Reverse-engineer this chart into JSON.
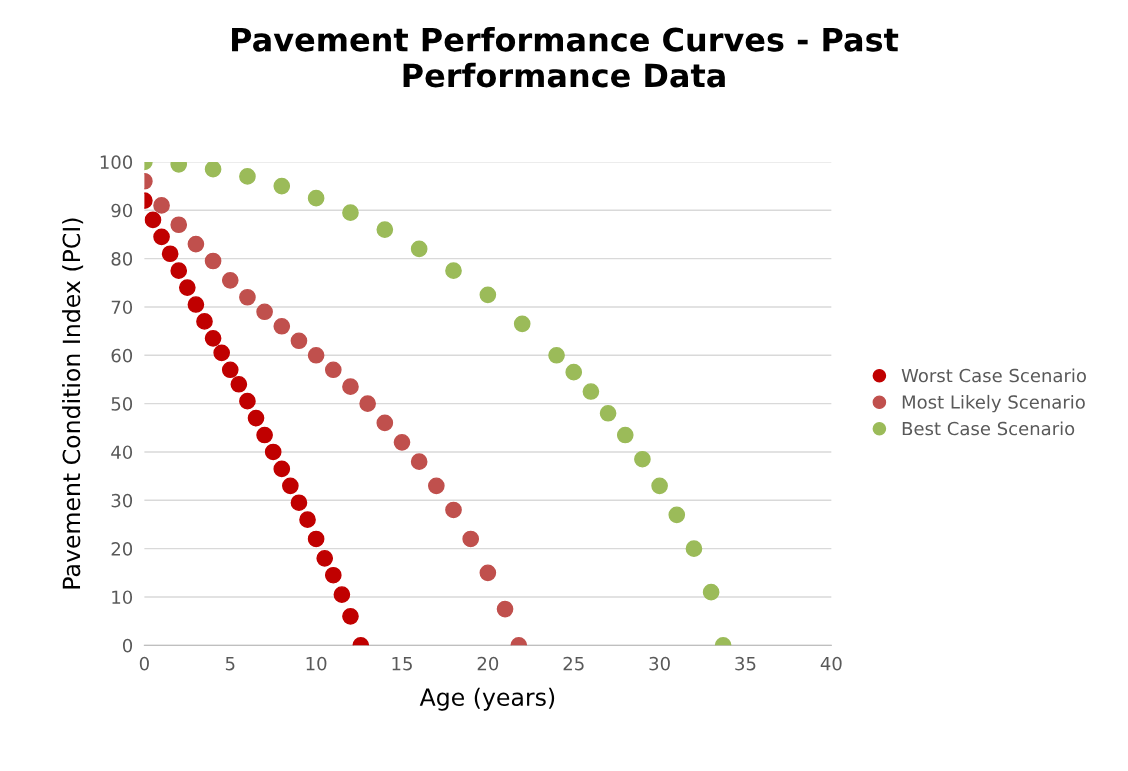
{
  "chart_data": {
    "type": "scatter",
    "title": "Pavement Performance Curves - Past\nPerformance Data",
    "xlabel": "Age (years)",
    "ylabel": "Pavement Condition Index (PCI)",
    "xlim": [
      0,
      40
    ],
    "xticks": [
      0,
      5,
      10,
      15,
      20,
      25,
      30,
      35,
      40
    ],
    "ylim": [
      0,
      100
    ],
    "yticks": [
      0,
      10,
      20,
      30,
      40,
      50,
      60,
      70,
      80,
      90,
      100
    ],
    "grid": "y",
    "legend": "right",
    "marker": "circle",
    "series": [
      {
        "name": "Worst Case Scenario",
        "color": "#c00000",
        "x": [
          0,
          0.5,
          1,
          1.5,
          2,
          2.5,
          3,
          3.5,
          4,
          4.5,
          5,
          5.5,
          6,
          6.5,
          7,
          7.5,
          8,
          8.5,
          9,
          9.5,
          10,
          10.5,
          11,
          11.5,
          12,
          12.6
        ],
        "values": [
          92,
          88,
          84.5,
          81,
          77.5,
          74,
          70.5,
          67,
          63.5,
          60.5,
          57,
          54,
          50.5,
          47,
          43.5,
          40,
          36.5,
          33,
          29.5,
          26,
          22,
          18,
          14.5,
          10.5,
          6,
          0
        ]
      },
      {
        "name": "Most Likely Scenario",
        "color": "#c0504d",
        "x": [
          0,
          1,
          2,
          3,
          4,
          5,
          6,
          7,
          8,
          9,
          10,
          11,
          12,
          13,
          14,
          15,
          16,
          17,
          18,
          19,
          20,
          21,
          21.8
        ],
        "values": [
          96,
          91,
          87,
          83,
          79.5,
          75.5,
          72,
          69,
          66,
          63,
          60,
          57,
          53.5,
          50,
          46,
          42,
          38,
          33,
          28,
          22,
          15,
          7.5,
          0
        ]
      },
      {
        "name": "Best Case Scenario",
        "color": "#9bbb59",
        "x": [
          0,
          2,
          4,
          6,
          8,
          10,
          12,
          14,
          16,
          18,
          20,
          22,
          24,
          25,
          26,
          27,
          28,
          29,
          30,
          31,
          32,
          33,
          33.7
        ],
        "values": [
          100,
          99.5,
          98.5,
          97,
          95,
          92.5,
          89.5,
          86,
          82,
          77.5,
          72.5,
          66.5,
          60,
          56.5,
          52.5,
          48,
          43.5,
          38.5,
          33,
          27,
          20,
          11,
          0
        ]
      }
    ]
  }
}
